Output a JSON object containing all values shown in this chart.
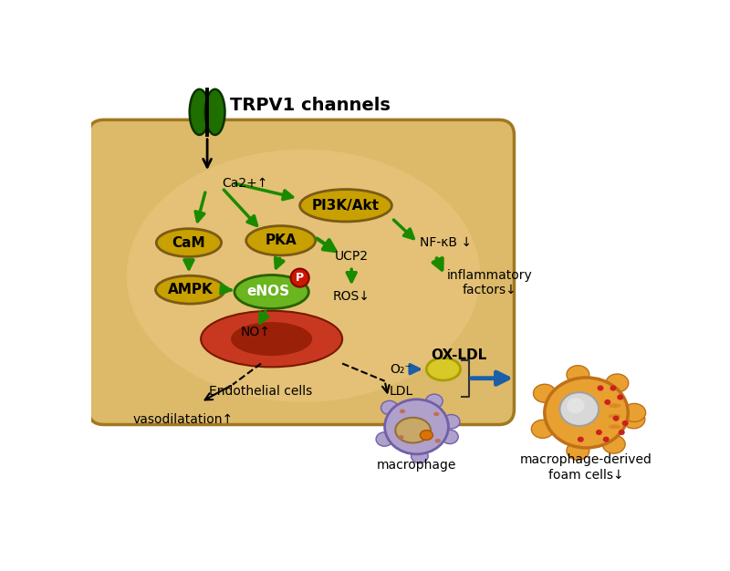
{
  "cell_face": "#ddb96a",
  "cell_edge": "#b8872a",
  "arrow_green": "#1a8a00",
  "yf": "#c8a000",
  "ye": "#7a5a14",
  "enos_face": "#6ab520",
  "enos_edge": "#2a6000",
  "arrow_blue": "#1a5fa8",
  "rbc_outer": "#c83820",
  "rbc_inner": "#8b1800",
  "chan_green": "#1e6e00",
  "chan_edge": "#0a3200",
  "macro_body": "#a898c8",
  "macro_edge": "#6858a8",
  "macro_nuc_f": "#c8a060",
  "macro_nuc_e": "#907038",
  "foam_body": "#e8a030",
  "foam_edge": "#b06010",
  "foam_nuc_f": "#c8c8c8",
  "foam_nuc_e": "#909090",
  "p_red": "#cc1800",
  "title": "TRPV1 channels",
  "Ca2_lbl": "Ca2+↑",
  "PI3K_lbl": "PI3K/Akt",
  "PKA_lbl": "PKA",
  "CaM_lbl": "CaM",
  "AMPK_lbl": "AMPK",
  "eNOS_lbl": "eNOS",
  "NO_lbl": "NO↑",
  "NFkB_lbl": "NF-κB ↓",
  "UCP2_lbl": "UCP2",
  "ROS_lbl": "ROS↓",
  "inflam_lbl": "inflammatory\nfactors↓",
  "endo_lbl": "Endothelial cells",
  "vasodil_lbl": "vasodilatation↑",
  "OXLDL_lbl": "OX-LDL",
  "O2_lbl": "O₂⁻",
  "LDL_lbl": "LDL",
  "macro_lbl": "macrophage",
  "foam_lbl": "macrophage-derived\nfoam cells↓"
}
